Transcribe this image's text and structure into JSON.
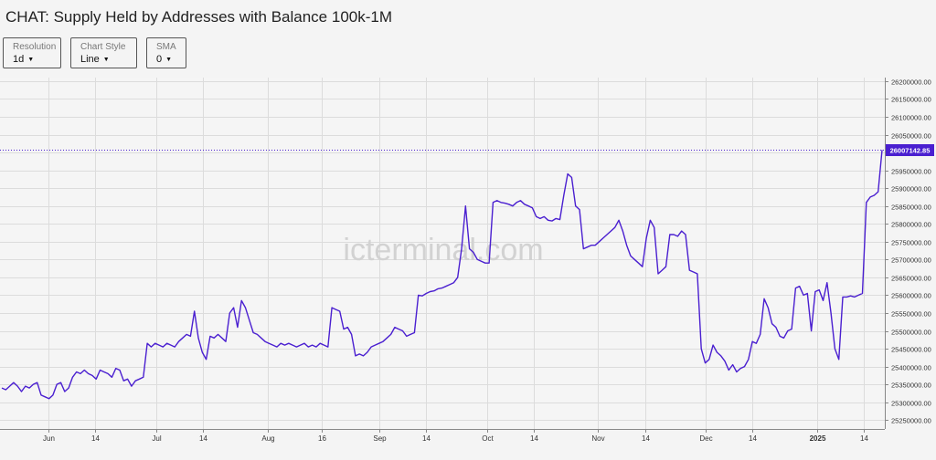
{
  "title": "CHAT: Supply Held by Addresses with Balance 100k-1M",
  "controls": {
    "resolution": {
      "label": "Resolution",
      "value": "1d"
    },
    "chart_style": {
      "label": "Chart Style",
      "value": "Line"
    },
    "sma": {
      "label": "SMA",
      "value": "0"
    }
  },
  "watermark": "icterminal.com",
  "colors": {
    "line": "#4a1fd0",
    "price_tag": "#4a1fd0",
    "grid": "#dcdcdc"
  },
  "chart_data": {
    "type": "line",
    "title": "CHAT: Supply Held by Addresses with Balance 100k-1M",
    "x_tick_labels": [
      "Jun",
      "14",
      "Jul",
      "14",
      "Aug",
      "16",
      "Sep",
      "14",
      "Oct",
      "14",
      "Nov",
      "14",
      "Dec",
      "14",
      "2025",
      "14"
    ],
    "y_tick_labels": [
      "25250000.00",
      "25300000.00",
      "25350000.00",
      "25400000.00",
      "25450000.00",
      "25500000.00",
      "25550000.00",
      "25600000.00",
      "25650000.00",
      "25700000.00",
      "25750000.00",
      "25800000.00",
      "25850000.00",
      "25900000.00",
      "25950000.00",
      "26000000.00",
      "26050000.00",
      "26100000.00",
      "26150000.00",
      "26200000.00"
    ],
    "ylim": [
      25225000,
      26210000
    ],
    "last_value": 26007142.85,
    "last_value_label": "26007142.85",
    "grid": true,
    "series": [
      {
        "x_start": "2024-05-19",
        "x_end": "2025-01-19",
        "values": [
          25340000,
          25335000,
          25345000,
          25355000,
          25345000,
          25330000,
          25345000,
          25340000,
          25350000,
          25355000,
          25320000,
          25315000,
          25310000,
          25320000,
          25350000,
          25355000,
          25330000,
          25340000,
          25370000,
          25385000,
          25380000,
          25390000,
          25380000,
          25375000,
          25365000,
          25390000,
          25385000,
          25380000,
          25370000,
          25395000,
          25390000,
          25360000,
          25365000,
          25345000,
          25360000,
          25365000,
          25370000,
          25465000,
          25455000,
          25465000,
          25460000,
          25455000,
          25465000,
          25460000,
          25455000,
          25470000,
          25480000,
          25490000,
          25485000,
          25555000,
          25480000,
          25440000,
          25420000,
          25485000,
          25480000,
          25490000,
          25480000,
          25470000,
          25550000,
          25565000,
          25510000,
          25585000,
          25565000,
          25530000,
          25495000,
          25490000,
          25480000,
          25470000,
          25465000,
          25460000,
          25455000,
          25465000,
          25460000,
          25465000,
          25460000,
          25455000,
          25460000,
          25465000,
          25455000,
          25460000,
          25455000,
          25465000,
          25460000,
          25455000,
          25565000,
          25560000,
          25555000,
          25505000,
          25510000,
          25490000,
          25430000,
          25435000,
          25430000,
          25440000,
          25455000,
          25460000,
          25465000,
          25470000,
          25480000,
          25490000,
          25510000,
          25505000,
          25500000,
          25485000,
          25490000,
          25495000,
          25600000,
          25598000,
          25605000,
          25610000,
          25612000,
          25618000,
          25620000,
          25625000,
          25630000,
          25635000,
          25650000,
          25730000,
          25850000,
          25730000,
          25720000,
          25700000,
          25695000,
          25690000,
          25690000,
          25860000,
          25865000,
          25860000,
          25858000,
          25855000,
          25850000,
          25860000,
          25865000,
          25855000,
          25850000,
          25845000,
          25820000,
          25815000,
          25820000,
          25810000,
          25808000,
          25815000,
          25812000,
          25880000,
          25940000,
          25930000,
          25850000,
          25840000,
          25730000,
          25735000,
          25740000,
          25740000,
          25750000,
          25760000,
          25770000,
          25780000,
          25790000,
          25810000,
          25780000,
          25740000,
          25710000,
          25700000,
          25690000,
          25680000,
          25760000,
          25810000,
          25790000,
          25660000,
          25670000,
          25680000,
          25770000,
          25770000,
          25765000,
          25780000,
          25770000,
          25670000,
          25665000,
          25660000,
          25450000,
          25410000,
          25420000,
          25460000,
          25440000,
          25430000,
          25415000,
          25390000,
          25405000,
          25385000,
          25395000,
          25400000,
          25420000,
          25470000,
          25465000,
          25490000,
          25590000,
          25565000,
          25520000,
          25510000,
          25485000,
          25480000,
          25500000,
          25505000,
          25620000,
          25625000,
          25600000,
          25605000,
          25500000,
          25610000,
          25615000,
          25585000,
          25635000,
          25550000,
          25450000,
          25420000,
          25595000,
          25595000,
          25598000,
          25595000,
          25600000,
          25605000,
          25860000,
          25875000,
          25880000,
          25890000,
          26007142.85
        ]
      }
    ]
  }
}
